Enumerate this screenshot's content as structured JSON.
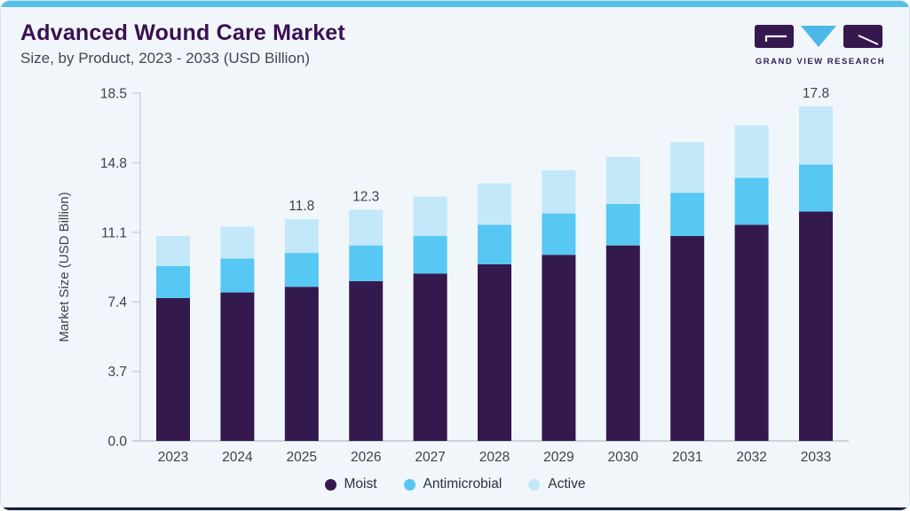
{
  "header": {
    "title": "Advanced Wound Care Market",
    "subtitle": "Size, by Product, 2023 - 2033 (USD Billion)"
  },
  "logo": {
    "text": "GRAND VIEW RESEARCH",
    "purple": "#35184e",
    "cyan": "#4bb8e8",
    "text_color": "#33215c"
  },
  "theme": {
    "card_bg": "#f1f6fa",
    "top_strip": "#55bfe6",
    "bottom_strip": "#1c1c39",
    "title_color": "#3b1053",
    "subtitle_color": "#45454f",
    "axis_text": "#3f3f4e",
    "axis_line": "#c9d3dc",
    "value_label_text": "#3f3f4e"
  },
  "chart_data": {
    "type": "bar",
    "stacked": true,
    "title": "Advanced Wound Care Market Size, by Product, 2023 - 2033 (USD Billion)",
    "xlabel": "",
    "ylabel": "Market Size (USD Billion)",
    "ylim": [
      0,
      18.5
    ],
    "yticks": [
      0.0,
      3.7,
      7.4,
      11.1,
      14.8,
      18.5
    ],
    "grid": false,
    "legend_position": "bottom",
    "categories": [
      "2023",
      "2024",
      "2025",
      "2026",
      "2027",
      "2028",
      "2029",
      "2030",
      "2031",
      "2032",
      "2033"
    ],
    "series": [
      {
        "name": "Moist",
        "color": "#33194d",
        "values": [
          7.6,
          7.9,
          8.2,
          8.5,
          8.9,
          9.4,
          9.9,
          10.4,
          10.9,
          11.5,
          12.2
        ]
      },
      {
        "name": "Antimicrobial",
        "color": "#57c7f4",
        "values": [
          1.7,
          1.8,
          1.8,
          1.9,
          2.0,
          2.1,
          2.2,
          2.2,
          2.3,
          2.5,
          2.5
        ]
      },
      {
        "name": "Active",
        "color": "#c3e8fa",
        "values": [
          1.6,
          1.7,
          1.8,
          1.9,
          2.1,
          2.2,
          2.3,
          2.5,
          2.7,
          2.8,
          3.1
        ]
      }
    ],
    "totals": [
      10.9,
      11.4,
      11.8,
      12.3,
      13.0,
      13.7,
      14.4,
      15.1,
      15.9,
      16.8,
      17.8
    ],
    "value_labels": [
      {
        "category": "2025",
        "text": "11.8"
      },
      {
        "category": "2026",
        "text": "12.3"
      },
      {
        "category": "2033",
        "text": "17.8"
      }
    ]
  }
}
